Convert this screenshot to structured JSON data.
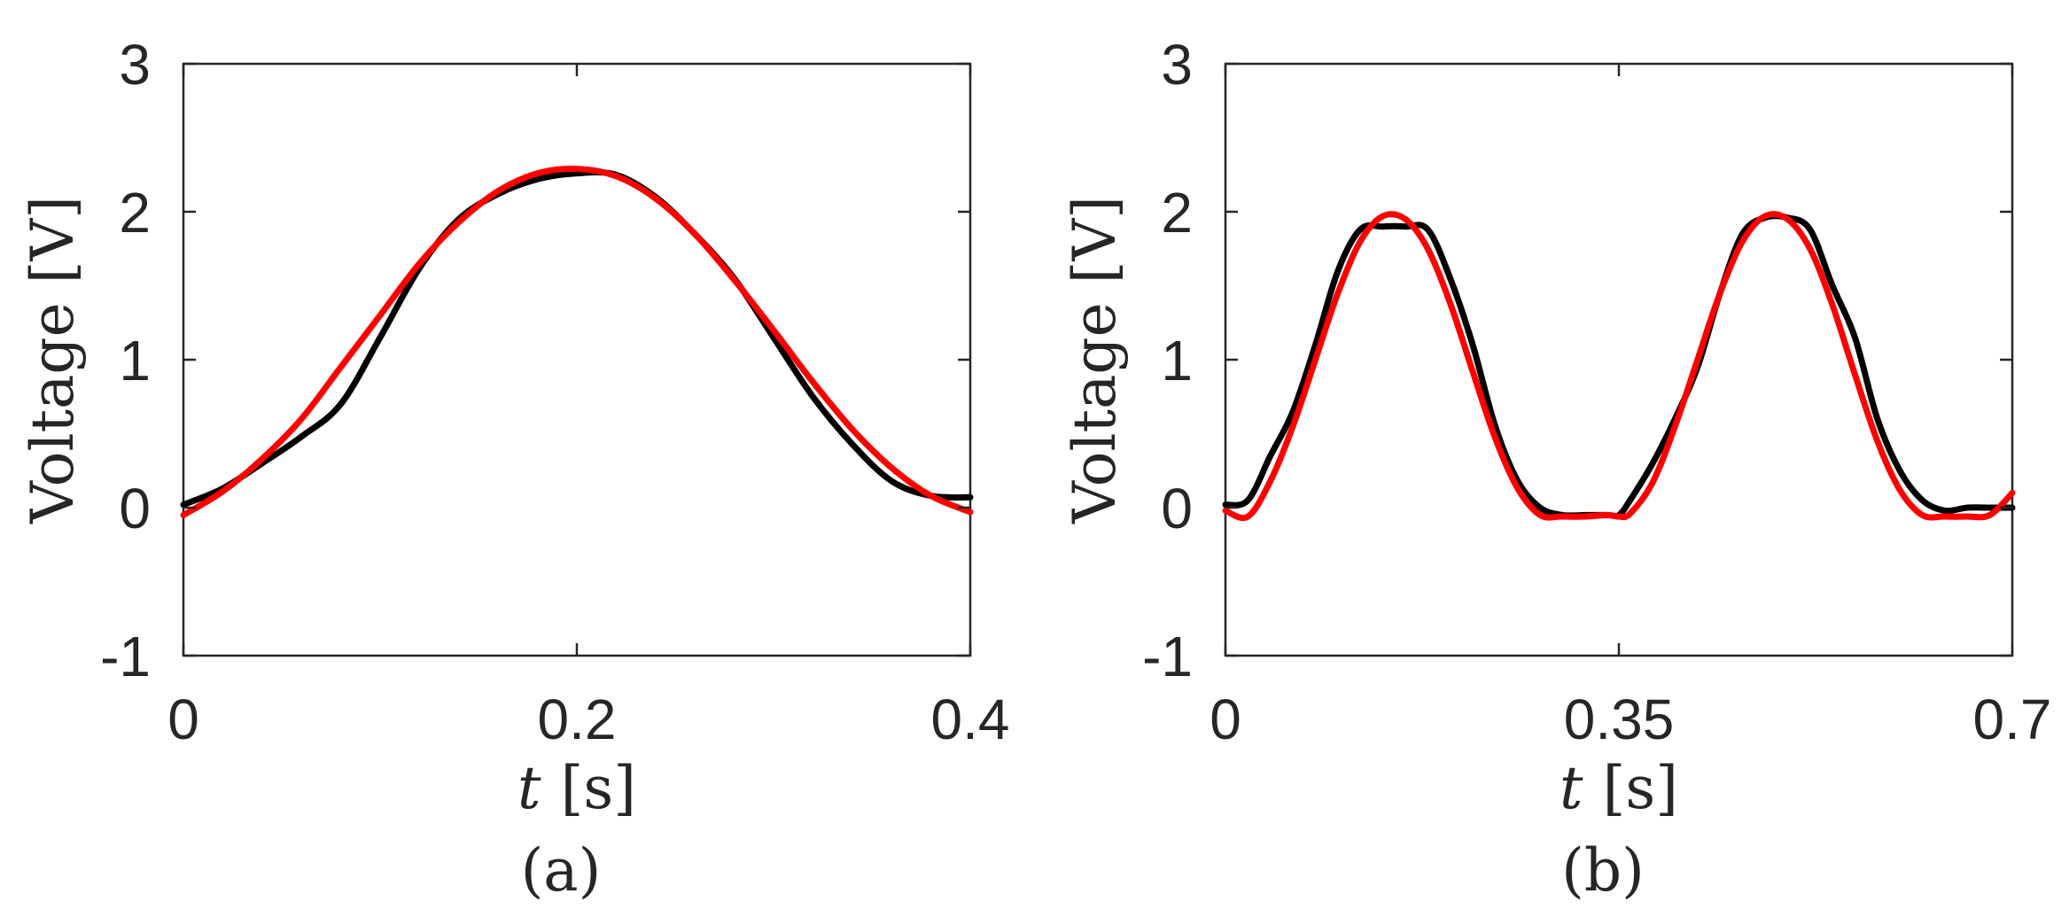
{
  "chart_data": [
    {
      "type": "line",
      "caption": "(a)",
      "xlabel_var": "t",
      "xlabel_unit": "[s]",
      "ylabel": "Voltage [V]",
      "xlim": [
        0,
        0.4
      ],
      "ylim": [
        -1,
        3
      ],
      "xticks": [
        0,
        0.2,
        0.4
      ],
      "xtick_labels": [
        "0",
        "0.2",
        "0.4"
      ],
      "yticks": [
        -1,
        0,
        1,
        2,
        3
      ],
      "ytick_labels": [
        "-1",
        "0",
        "1",
        "2",
        "3"
      ],
      "series": [
        {
          "color": "#000000",
          "x": [
            0,
            0.02,
            0.04,
            0.06,
            0.08,
            0.1,
            0.12,
            0.14,
            0.16,
            0.18,
            0.2,
            0.22,
            0.24,
            0.26,
            0.28,
            0.3,
            0.32,
            0.34,
            0.36,
            0.38,
            0.4
          ],
          "y": [
            0.02,
            0.13,
            0.3,
            0.48,
            0.7,
            1.15,
            1.62,
            1.95,
            2.12,
            2.22,
            2.26,
            2.25,
            2.1,
            1.85,
            1.55,
            1.15,
            0.75,
            0.43,
            0.18,
            0.08,
            0.07
          ]
        },
        {
          "color": "#ff0000",
          "x": [
            0,
            0.02,
            0.04,
            0.06,
            0.08,
            0.1,
            0.12,
            0.14,
            0.16,
            0.18,
            0.2,
            0.22,
            0.24,
            0.26,
            0.28,
            0.3,
            0.32,
            0.34,
            0.36,
            0.38,
            0.4
          ],
          "y": [
            -0.05,
            0.11,
            0.33,
            0.6,
            0.95,
            1.3,
            1.65,
            1.93,
            2.14,
            2.26,
            2.29,
            2.24,
            2.09,
            1.85,
            1.54,
            1.2,
            0.85,
            0.53,
            0.27,
            0.08,
            -0.03
          ]
        }
      ]
    },
    {
      "type": "line",
      "caption": "(b)",
      "xlabel_var": "t",
      "xlabel_unit": "[s]",
      "ylabel": "Voltage [V]",
      "xlim": [
        0,
        0.7
      ],
      "ylim": [
        -1,
        3
      ],
      "xticks": [
        0,
        0.35,
        0.7
      ],
      "xtick_labels": [
        "0",
        "0.35",
        "0.7"
      ],
      "yticks": [
        -1,
        0,
        1,
        2,
        3
      ],
      "ytick_labels": [
        "-1",
        "0",
        "1",
        "2",
        "3"
      ],
      "series": [
        {
          "color": "#000000",
          "x": [
            0,
            0.02,
            0.04,
            0.06,
            0.08,
            0.1,
            0.12,
            0.14,
            0.16,
            0.18,
            0.2,
            0.22,
            0.24,
            0.26,
            0.28,
            0.3,
            0.32,
            0.34,
            0.35,
            0.36,
            0.38,
            0.4,
            0.42,
            0.44,
            0.46,
            0.48,
            0.5,
            0.52,
            0.54,
            0.56,
            0.58,
            0.6,
            0.62,
            0.64,
            0.66,
            0.68,
            0.7
          ],
          "y": [
            0.02,
            0.05,
            0.35,
            0.65,
            1.1,
            1.6,
            1.88,
            1.9,
            1.9,
            1.88,
            1.55,
            1.1,
            0.55,
            0.18,
            0.0,
            -0.05,
            -0.05,
            -0.05,
            -0.05,
            0.05,
            0.3,
            0.6,
            0.95,
            1.45,
            1.85,
            1.96,
            1.96,
            1.88,
            1.5,
            1.15,
            0.6,
            0.25,
            0.05,
            -0.02,
            0.0,
            0.0,
            0.0
          ]
        },
        {
          "color": "#ff0000",
          "x": [
            0,
            0.02,
            0.04,
            0.06,
            0.08,
            0.1,
            0.12,
            0.14,
            0.16,
            0.18,
            0.2,
            0.22,
            0.24,
            0.26,
            0.28,
            0.3,
            0.32,
            0.34,
            0.35,
            0.36,
            0.38,
            0.4,
            0.42,
            0.44,
            0.46,
            0.48,
            0.5,
            0.52,
            0.54,
            0.56,
            0.58,
            0.6,
            0.62,
            0.64,
            0.66,
            0.68,
            0.7
          ],
          "y": [
            -0.02,
            -0.06,
            0.18,
            0.55,
            1.0,
            1.45,
            1.8,
            1.97,
            1.95,
            1.75,
            1.38,
            0.92,
            0.47,
            0.13,
            -0.05,
            -0.06,
            -0.06,
            -0.05,
            -0.06,
            -0.04,
            0.17,
            0.55,
            1.0,
            1.45,
            1.8,
            1.97,
            1.95,
            1.75,
            1.37,
            0.9,
            0.45,
            0.12,
            -0.05,
            -0.06,
            -0.06,
            -0.05,
            0.1
          ]
        }
      ]
    }
  ]
}
